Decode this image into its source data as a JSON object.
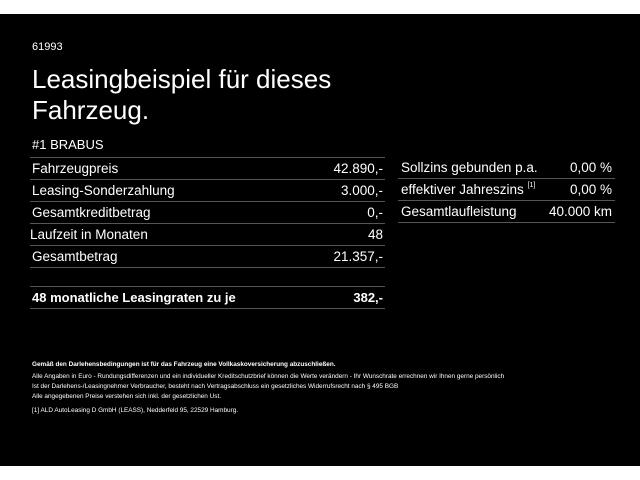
{
  "code": "61993",
  "title": "Leasingbeispiel für dieses Fahrzeug.",
  "model": "#1 BRABUS",
  "left_rows": [
    {
      "label": "Fahrzeugpreis",
      "value": "42.890,-"
    },
    {
      "label": "Leasing-Sonderzahlung",
      "value": "3.000,-"
    },
    {
      "label": "Gesamtkreditbetrag",
      "value": "0,-"
    },
    {
      "label": "Laufzeit in Monaten",
      "value": "48"
    },
    {
      "label": "Gesamtbetrag",
      "value": "21.357,-"
    }
  ],
  "right_rows": [
    {
      "label": "Sollzins gebunden p.a.",
      "sup": "",
      "value": "0,00 %"
    },
    {
      "label": "effektiver Jahreszins",
      "sup": "[1]",
      "value": "0,00 %"
    },
    {
      "label": "Gesamtlaufleistung",
      "sup": "",
      "value": "40.000 km"
    }
  ],
  "monthly": {
    "label": "48 monatliche Leasingraten zu je",
    "value": "382,-"
  },
  "fine_print": {
    "bold": "Gemäß den Darlehensbedingungen ist für das Fahrzeug eine Vollkaskoversicherung abzuschließen.",
    "lines": [
      "Alle Angaben in Euro - Rundungsdifferenzen und ein individueller Kreditschutzbrief können die Werte verändern - Ihr Wunschrate errechnen wir Ihnen gerne persönlich",
      "Ist der Darlehens-/Leasingnehmer Verbraucher, besteht nach Vertragsabschluss ein gesetzliches Widerrufsrecht nach § 495 BGB",
      "Alle angegebenen Preise verstehen sich inkl. der gesetzlichen Ust."
    ],
    "footnote": "[1] ALD AutoLeasing D GmbH (LEASS), Nedderfeld 95, 22529 Hamburg."
  }
}
